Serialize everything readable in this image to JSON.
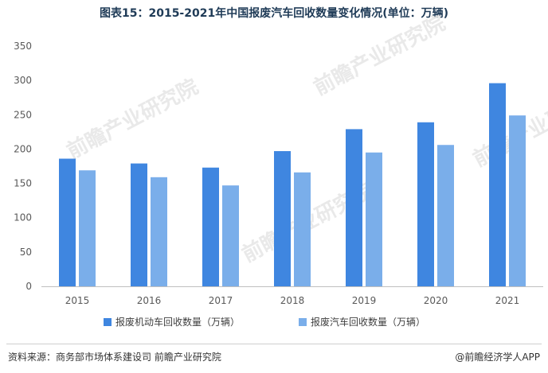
{
  "header": {
    "title": "图表15：2015-2021年中国报废汽车回收数量变化情况(单位：万辆)"
  },
  "watermark": "前瞻产业研究院",
  "footer": {
    "source": "资料来源：商务部市场体系建设司 前瞻产业研究院",
    "brand": "@前瞻经济学人APP"
  },
  "colors": {
    "series1": "#3f86e0",
    "series2": "#7aaeea"
  },
  "chart_data": {
    "type": "bar",
    "categories": [
      "2015",
      "2016",
      "2017",
      "2018",
      "2019",
      "2020",
      "2021"
    ],
    "series": [
      {
        "name": "报废机动车回收数量（万辆）",
        "values": [
          186,
          179,
          173,
          197,
          229,
          239,
          296
        ]
      },
      {
        "name": "报废汽车回收数量（万辆）",
        "values": [
          169,
          159,
          147,
          166,
          195,
          206,
          249
        ]
      }
    ],
    "yticks": [
      "0",
      "50",
      "100",
      "150",
      "200",
      "250",
      "300",
      "350"
    ],
    "ylim": [
      0,
      350
    ],
    "grid": false,
    "legend": "bottom"
  }
}
